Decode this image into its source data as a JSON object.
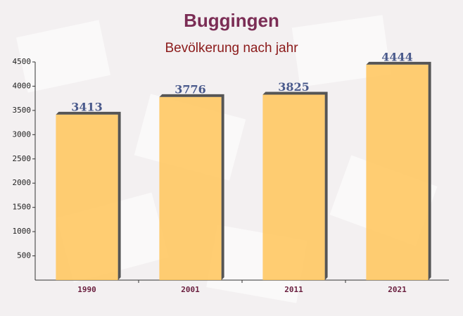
{
  "chart_data": {
    "type": "bar",
    "title": "Buggingen",
    "subtitle": "Bevölkerung nach jahr",
    "categories": [
      "1990",
      "2001",
      "2011",
      "2021"
    ],
    "values": [
      3413,
      3776,
      3825,
      4444
    ],
    "color": "#ffc55a",
    "ylim": [
      0,
      4500
    ],
    "yticks": [
      500,
      1000,
      1500,
      2000,
      2500,
      3000,
      3500,
      4000,
      4500
    ],
    "grid": false
  }
}
